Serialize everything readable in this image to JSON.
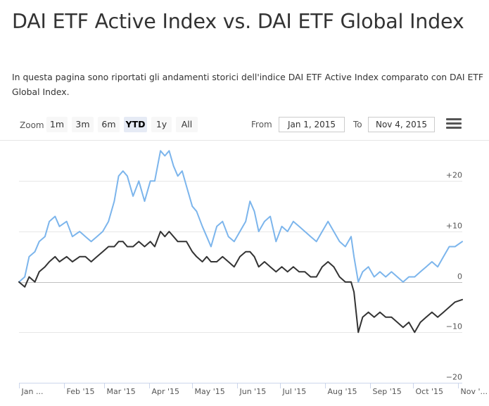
{
  "page": {
    "title": "DAI ETF Active Index vs. DAI ETF Global Index",
    "intro": "In questa pagina sono riportati gli andamenti storici dell'indice DAI ETF Active Index comparato con DAI ETF Global Index."
  },
  "toolbar": {
    "zoom_label": "Zoom",
    "ranges": [
      "1m",
      "3m",
      "6m",
      "YTD",
      "1y",
      "All"
    ],
    "active_range": "YTD",
    "from_label": "From",
    "from_value": "Jan 1, 2015",
    "to_label": "To",
    "to_value": "Nov 4, 2015"
  },
  "colors": {
    "active_series": "#7cb5ec",
    "global_series": "#333333",
    "gridline": "#e6e6e6",
    "zero_line": "#c0c0c0"
  },
  "chart_data": {
    "type": "line",
    "ylim": [
      -20,
      28
    ],
    "yticks": [
      20,
      10,
      0,
      -10,
      -20
    ],
    "ytick_labels": [
      "+20",
      "+10",
      "0",
      "−10",
      "−20"
    ],
    "xticks": [
      {
        "label": "Jan ...",
        "x": "2015-01-01"
      },
      {
        "label": "Feb '15",
        "x": "2015-02-01"
      },
      {
        "label": "Mar '15",
        "x": "2015-03-01"
      },
      {
        "label": "Apr '15",
        "x": "2015-04-01"
      },
      {
        "label": "May '15",
        "x": "2015-05-01"
      },
      {
        "label": "Jun '15",
        "x": "2015-06-01"
      },
      {
        "label": "Jul '15",
        "x": "2015-07-01"
      },
      {
        "label": "Aug '15",
        "x": "2015-08-01"
      },
      {
        "label": "Sep '15",
        "x": "2015-09-01"
      },
      {
        "label": "Oct '15",
        "x": "2015-10-01"
      },
      {
        "label": "Nov '...",
        "x": "2015-11-01"
      }
    ],
    "xlim": [
      "2015-01-01",
      "2015-11-04"
    ],
    "series": [
      {
        "color": "#7cb5ec",
        "points": [
          [
            "2015-01-01",
            0
          ],
          [
            "2015-01-05",
            1
          ],
          [
            "2015-01-08",
            5
          ],
          [
            "2015-01-12",
            6
          ],
          [
            "2015-01-15",
            8
          ],
          [
            "2015-01-19",
            9
          ],
          [
            "2015-01-22",
            12
          ],
          [
            "2015-01-26",
            13
          ],
          [
            "2015-01-29",
            11
          ],
          [
            "2015-02-03",
            12
          ],
          [
            "2015-02-07",
            9
          ],
          [
            "2015-02-12",
            10
          ],
          [
            "2015-02-16",
            9
          ],
          [
            "2015-02-20",
            8
          ],
          [
            "2015-02-24",
            9
          ],
          [
            "2015-02-28",
            10
          ],
          [
            "2015-03-04",
            12
          ],
          [
            "2015-03-08",
            16
          ],
          [
            "2015-03-11",
            21
          ],
          [
            "2015-03-14",
            22
          ],
          [
            "2015-03-17",
            21
          ],
          [
            "2015-03-21",
            17
          ],
          [
            "2015-03-25",
            20
          ],
          [
            "2015-03-29",
            16
          ],
          [
            "2015-04-02",
            20
          ],
          [
            "2015-04-05",
            20
          ],
          [
            "2015-04-09",
            26
          ],
          [
            "2015-04-12",
            25
          ],
          [
            "2015-04-15",
            26
          ],
          [
            "2015-04-18",
            23
          ],
          [
            "2015-04-21",
            21
          ],
          [
            "2015-04-24",
            22
          ],
          [
            "2015-04-27",
            19
          ],
          [
            "2015-05-01",
            15
          ],
          [
            "2015-05-04",
            14
          ],
          [
            "2015-05-08",
            11
          ],
          [
            "2015-05-11",
            9
          ],
          [
            "2015-05-14",
            7
          ],
          [
            "2015-05-18",
            11
          ],
          [
            "2015-05-22",
            12
          ],
          [
            "2015-05-26",
            9
          ],
          [
            "2015-05-30",
            8
          ],
          [
            "2015-06-03",
            10
          ],
          [
            "2015-06-07",
            12
          ],
          [
            "2015-06-10",
            16
          ],
          [
            "2015-06-13",
            14
          ],
          [
            "2015-06-16",
            10
          ],
          [
            "2015-06-20",
            12
          ],
          [
            "2015-06-24",
            13
          ],
          [
            "2015-06-28",
            8
          ],
          [
            "2015-07-02",
            11
          ],
          [
            "2015-07-06",
            10
          ],
          [
            "2015-07-10",
            12
          ],
          [
            "2015-07-14",
            11
          ],
          [
            "2015-07-18",
            10
          ],
          [
            "2015-07-22",
            9
          ],
          [
            "2015-07-26",
            8
          ],
          [
            "2015-07-30",
            10
          ],
          [
            "2015-08-03",
            12
          ],
          [
            "2015-08-07",
            10
          ],
          [
            "2015-08-11",
            8
          ],
          [
            "2015-08-15",
            7
          ],
          [
            "2015-08-19",
            9
          ],
          [
            "2015-08-21",
            5
          ],
          [
            "2015-08-24",
            0
          ],
          [
            "2015-08-27",
            2
          ],
          [
            "2015-08-31",
            3
          ],
          [
            "2015-09-04",
            1
          ],
          [
            "2015-09-08",
            2
          ],
          [
            "2015-09-12",
            1
          ],
          [
            "2015-09-16",
            2
          ],
          [
            "2015-09-20",
            1
          ],
          [
            "2015-09-24",
            0
          ],
          [
            "2015-09-28",
            1
          ],
          [
            "2015-10-02",
            1
          ],
          [
            "2015-10-06",
            2
          ],
          [
            "2015-10-10",
            3
          ],
          [
            "2015-10-14",
            4
          ],
          [
            "2015-10-18",
            3
          ],
          [
            "2015-10-22",
            5
          ],
          [
            "2015-10-26",
            7
          ],
          [
            "2015-10-30",
            7
          ],
          [
            "2015-11-04",
            8
          ]
        ]
      },
      {
        "color": "#333333",
        "points": [
          [
            "2015-01-01",
            0
          ],
          [
            "2015-01-05",
            -1
          ],
          [
            "2015-01-08",
            1
          ],
          [
            "2015-01-12",
            0
          ],
          [
            "2015-01-15",
            2
          ],
          [
            "2015-01-19",
            3
          ],
          [
            "2015-01-22",
            4
          ],
          [
            "2015-01-26",
            5
          ],
          [
            "2015-01-29",
            4
          ],
          [
            "2015-02-03",
            5
          ],
          [
            "2015-02-07",
            4
          ],
          [
            "2015-02-12",
            5
          ],
          [
            "2015-02-16",
            5
          ],
          [
            "2015-02-20",
            4
          ],
          [
            "2015-02-24",
            5
          ],
          [
            "2015-02-28",
            6
          ],
          [
            "2015-03-04",
            7
          ],
          [
            "2015-03-08",
            7
          ],
          [
            "2015-03-11",
            8
          ],
          [
            "2015-03-14",
            8
          ],
          [
            "2015-03-17",
            7
          ],
          [
            "2015-03-21",
            7
          ],
          [
            "2015-03-25",
            8
          ],
          [
            "2015-03-29",
            7
          ],
          [
            "2015-04-02",
            8
          ],
          [
            "2015-04-05",
            7
          ],
          [
            "2015-04-09",
            10
          ],
          [
            "2015-04-12",
            9
          ],
          [
            "2015-04-15",
            10
          ],
          [
            "2015-04-18",
            9
          ],
          [
            "2015-04-21",
            8
          ],
          [
            "2015-04-24",
            8
          ],
          [
            "2015-04-27",
            8
          ],
          [
            "2015-05-01",
            6
          ],
          [
            "2015-05-04",
            5
          ],
          [
            "2015-05-08",
            4
          ],
          [
            "2015-05-11",
            5
          ],
          [
            "2015-05-14",
            4
          ],
          [
            "2015-05-18",
            4
          ],
          [
            "2015-05-22",
            5
          ],
          [
            "2015-05-26",
            4
          ],
          [
            "2015-05-30",
            3
          ],
          [
            "2015-06-03",
            5
          ],
          [
            "2015-06-07",
            6
          ],
          [
            "2015-06-10",
            6
          ],
          [
            "2015-06-13",
            5
          ],
          [
            "2015-06-16",
            3
          ],
          [
            "2015-06-20",
            4
          ],
          [
            "2015-06-24",
            3
          ],
          [
            "2015-06-28",
            2
          ],
          [
            "2015-07-02",
            3
          ],
          [
            "2015-07-06",
            2
          ],
          [
            "2015-07-10",
            3
          ],
          [
            "2015-07-14",
            2
          ],
          [
            "2015-07-18",
            2
          ],
          [
            "2015-07-22",
            1
          ],
          [
            "2015-07-26",
            1
          ],
          [
            "2015-07-30",
            3
          ],
          [
            "2015-08-03",
            4
          ],
          [
            "2015-08-07",
            3
          ],
          [
            "2015-08-11",
            1
          ],
          [
            "2015-08-15",
            0
          ],
          [
            "2015-08-19",
            0
          ],
          [
            "2015-08-21",
            -2
          ],
          [
            "2015-08-24",
            -10
          ],
          [
            "2015-08-27",
            -7
          ],
          [
            "2015-08-31",
            -6
          ],
          [
            "2015-09-04",
            -7
          ],
          [
            "2015-09-08",
            -6
          ],
          [
            "2015-09-12",
            -7
          ],
          [
            "2015-09-16",
            -7
          ],
          [
            "2015-09-20",
            -8
          ],
          [
            "2015-09-24",
            -9
          ],
          [
            "2015-09-28",
            -8
          ],
          [
            "2015-10-02",
            -10
          ],
          [
            "2015-10-06",
            -8
          ],
          [
            "2015-10-10",
            -7
          ],
          [
            "2015-10-14",
            -6
          ],
          [
            "2015-10-18",
            -7
          ],
          [
            "2015-10-22",
            -6
          ],
          [
            "2015-10-26",
            -5
          ],
          [
            "2015-10-30",
            -4
          ],
          [
            "2015-11-04",
            -3.5
          ]
        ]
      }
    ]
  }
}
